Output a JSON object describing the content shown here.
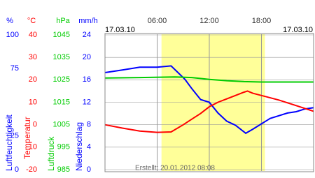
{
  "chart_data": {
    "type": "line",
    "date_left": "17.03.10",
    "date_right": "17.03.10",
    "footer": "Erstellt: 20.01.2012 08:08",
    "xlim": [
      0,
      24
    ],
    "xticks": [
      {
        "value": 6,
        "label": "06:00"
      },
      {
        "value": 12,
        "label": "12:00"
      },
      {
        "value": 18,
        "label": "18:00"
      }
    ],
    "daylight": [
      6.5,
      18.4
    ],
    "axes": [
      {
        "unit": "%",
        "label": "Luftfeuchtigkeit",
        "color": "#0000ff",
        "ylim": [
          0,
          100
        ],
        "yticks": [
          100,
          75,
          25,
          0
        ]
      },
      {
        "unit": "°C",
        "label": "Temperatur",
        "color": "#ff0000",
        "ylim": [
          -20,
          40
        ],
        "yticks": [
          40,
          30,
          20,
          10,
          0,
          -10,
          -20
        ]
      },
      {
        "unit": "hPa",
        "label": "Luftdruck",
        "color": "#00cc00",
        "ylim": [
          985,
          1045
        ],
        "yticks": [
          1045,
          1035,
          1025,
          1015,
          1005,
          995,
          985
        ]
      },
      {
        "unit": "mm/h",
        "label": "Niederschlag",
        "color": "#0000ff",
        "ylim": [
          0,
          24
        ],
        "yticks": [
          24,
          20,
          16,
          12,
          8,
          4,
          0
        ]
      }
    ],
    "series": [
      {
        "axis": 0,
        "color": "#0000ff",
        "x": [
          0,
          2,
          4,
          6,
          7.6,
          8.4,
          9.2,
          10,
          11,
          12,
          13,
          14,
          15,
          16.2,
          17,
          18,
          19,
          20,
          21,
          22,
          23,
          24
        ],
        "values": [
          72,
          74,
          76,
          76,
          77,
          72,
          67,
          60,
          52,
          50,
          42,
          36,
          33,
          27,
          30,
          34,
          38,
          40,
          42,
          43,
          45,
          46
        ]
      },
      {
        "axis": 1,
        "color": "#ff0000",
        "x": [
          0,
          2,
          4,
          6,
          7.6,
          9,
          10,
          11,
          12,
          13,
          14,
          15,
          16,
          16.4,
          17,
          18,
          20,
          22,
          24
        ],
        "values": [
          0,
          -1.5,
          -2.8,
          -3.4,
          -3.2,
          0,
          2.5,
          5,
          8,
          10,
          11.5,
          13,
          14.5,
          15,
          14,
          13,
          11,
          8.5,
          6
        ]
      },
      {
        "axis": 2,
        "color": "#00cc00",
        "x": [
          0,
          4,
          8,
          10,
          12,
          14,
          16,
          18,
          20,
          24
        ],
        "values": [
          1025.8,
          1026,
          1026.3,
          1026,
          1025.2,
          1024.6,
          1024.2,
          1024,
          1024,
          1024
        ]
      }
    ]
  }
}
